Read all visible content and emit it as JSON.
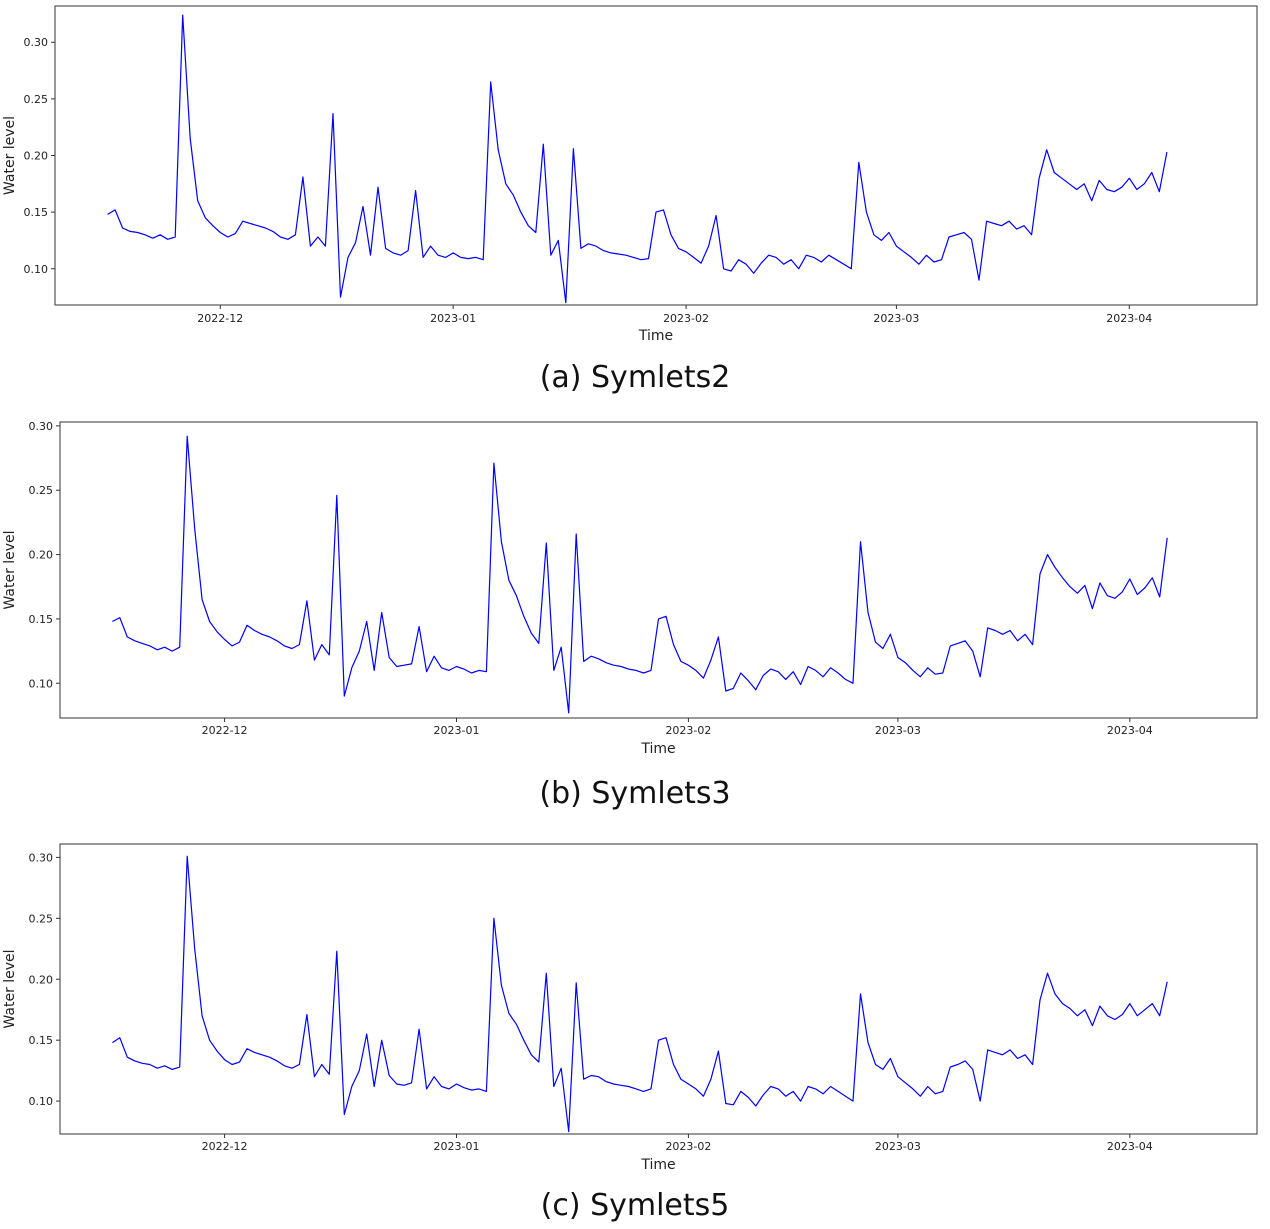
{
  "chart_data": [
    {
      "type": "line",
      "caption": "(a) Symlets2",
      "xlabel": "Time",
      "ylabel": "Water level",
      "ylim": [
        0.068,
        0.332
      ],
      "yticks": [
        "0.10",
        "0.15",
        "0.20",
        "0.25",
        "0.30"
      ],
      "ytick_values": [
        0.1,
        0.15,
        0.2,
        0.25,
        0.3
      ],
      "xticks": [
        "2022-12",
        "2023-01",
        "2023-02",
        "2023-03",
        "2023-04"
      ],
      "xtick_days": [
        15,
        46,
        77,
        105,
        136
      ],
      "xlim_days": [
        -7,
        153
      ],
      "color": "#0000ff",
      "series": [
        {
          "name": "Symlets2",
          "x_days": [
            0,
            1,
            2,
            3,
            4,
            5,
            6,
            7,
            8,
            9,
            10,
            11,
            12,
            13,
            14,
            15,
            16,
            17,
            18,
            19,
            20,
            21,
            22,
            23,
            24,
            25,
            26,
            27,
            28,
            29,
            30,
            31,
            32,
            33,
            34,
            35,
            36,
            37,
            38,
            39,
            40,
            41,
            42,
            43,
            44,
            45,
            46,
            47,
            48,
            49,
            50,
            51,
            52,
            53,
            54,
            55,
            56,
            57,
            58,
            59,
            60,
            61,
            62,
            63,
            64,
            65,
            66,
            67,
            68,
            69,
            70,
            71,
            72,
            73,
            74,
            75,
            76,
            77,
            78,
            79,
            80,
            81,
            82,
            83,
            84,
            85,
            86,
            87,
            88,
            89,
            90,
            91,
            92,
            93,
            94,
            95,
            96,
            97,
            98,
            99,
            100,
            101,
            102,
            103,
            104,
            105,
            106,
            107,
            108,
            109,
            110,
            111,
            112,
            113,
            114,
            115,
            116,
            117,
            118,
            119,
            120,
            121,
            122,
            123,
            124,
            125,
            126,
            127,
            128,
            129,
            130,
            131,
            132,
            133,
            134,
            135,
            136,
            137,
            138,
            139,
            140,
            141
          ],
          "values": [
            0.148,
            0.152,
            0.136,
            0.133,
            0.132,
            0.13,
            0.127,
            0.13,
            0.126,
            0.128,
            0.324,
            0.215,
            0.16,
            0.145,
            0.138,
            0.132,
            0.128,
            0.131,
            0.142,
            0.14,
            0.138,
            0.136,
            0.133,
            0.128,
            0.126,
            0.13,
            0.181,
            0.12,
            0.128,
            0.12,
            0.237,
            0.075,
            0.11,
            0.123,
            0.155,
            0.112,
            0.172,
            0.118,
            0.114,
            0.112,
            0.116,
            0.169,
            0.11,
            0.12,
            0.112,
            0.11,
            0.114,
            0.11,
            0.109,
            0.11,
            0.108,
            0.265,
            0.205,
            0.175,
            0.165,
            0.15,
            0.138,
            0.132,
            0.21,
            0.112,
            0.125,
            0.07,
            0.206,
            0.118,
            0.122,
            0.12,
            0.116,
            0.114,
            0.113,
            0.112,
            0.11,
            0.108,
            0.109,
            0.15,
            0.152,
            0.13,
            0.118,
            0.115,
            0.11,
            0.105,
            0.12,
            0.147,
            0.1,
            0.098,
            0.108,
            0.104,
            0.096,
            0.105,
            0.112,
            0.11,
            0.104,
            0.108,
            0.1,
            0.112,
            0.11,
            0.106,
            0.112,
            0.108,
            0.104,
            0.1,
            0.194,
            0.15,
            0.13,
            0.125,
            0.132,
            0.12,
            0.115,
            0.11,
            0.104,
            0.112,
            0.106,
            0.108,
            0.128,
            0.13,
            0.132,
            0.126,
            0.09,
            0.142,
            0.14,
            0.138,
            0.142,
            0.135,
            0.138,
            0.13,
            0.18,
            0.205,
            0.185,
            0.18,
            0.175,
            0.17,
            0.175,
            0.16,
            0.178,
            0.17,
            0.168,
            0.172,
            0.18,
            0.17,
            0.175,
            0.185,
            0.168,
            0.203
          ]
        }
      ]
    },
    {
      "type": "line",
      "caption": "(b) Symlets3",
      "xlabel": "Time",
      "ylabel": "Water level",
      "ylim": [
        0.073,
        0.303
      ],
      "yticks": [
        "0.10",
        "0.15",
        "0.20",
        "0.25",
        "0.30"
      ],
      "ytick_values": [
        0.1,
        0.15,
        0.2,
        0.25,
        0.3
      ],
      "xticks": [
        "2022-12",
        "2023-01",
        "2023-02",
        "2023-03",
        "2023-04"
      ],
      "xtick_days": [
        15,
        46,
        77,
        105,
        136
      ],
      "xlim_days": [
        -7,
        153
      ],
      "color": "#0000ff",
      "series": [
        {
          "name": "Symlets3",
          "x_days": [
            0,
            1,
            2,
            3,
            4,
            5,
            6,
            7,
            8,
            9,
            10,
            11,
            12,
            13,
            14,
            15,
            16,
            17,
            18,
            19,
            20,
            21,
            22,
            23,
            24,
            25,
            26,
            27,
            28,
            29,
            30,
            31,
            32,
            33,
            34,
            35,
            36,
            37,
            38,
            39,
            40,
            41,
            42,
            43,
            44,
            45,
            46,
            47,
            48,
            49,
            50,
            51,
            52,
            53,
            54,
            55,
            56,
            57,
            58,
            59,
            60,
            61,
            62,
            63,
            64,
            65,
            66,
            67,
            68,
            69,
            70,
            71,
            72,
            73,
            74,
            75,
            76,
            77,
            78,
            79,
            80,
            81,
            82,
            83,
            84,
            85,
            86,
            87,
            88,
            89,
            90,
            91,
            92,
            93,
            94,
            95,
            96,
            97,
            98,
            99,
            100,
            101,
            102,
            103,
            104,
            105,
            106,
            107,
            108,
            109,
            110,
            111,
            112,
            113,
            114,
            115,
            116,
            117,
            118,
            119,
            120,
            121,
            122,
            123,
            124,
            125,
            126,
            127,
            128,
            129,
            130,
            131,
            132,
            133,
            134,
            135,
            136,
            137,
            138,
            139,
            140,
            141
          ],
          "values": [
            0.148,
            0.151,
            0.136,
            0.133,
            0.131,
            0.129,
            0.126,
            0.128,
            0.125,
            0.128,
            0.292,
            0.22,
            0.165,
            0.148,
            0.14,
            0.134,
            0.129,
            0.132,
            0.145,
            0.141,
            0.138,
            0.136,
            0.133,
            0.129,
            0.127,
            0.13,
            0.164,
            0.118,
            0.13,
            0.122,
            0.246,
            0.09,
            0.112,
            0.125,
            0.148,
            0.11,
            0.155,
            0.12,
            0.113,
            0.114,
            0.115,
            0.144,
            0.109,
            0.121,
            0.112,
            0.11,
            0.113,
            0.111,
            0.108,
            0.11,
            0.109,
            0.271,
            0.21,
            0.18,
            0.168,
            0.152,
            0.139,
            0.131,
            0.209,
            0.11,
            0.128,
            0.077,
            0.216,
            0.117,
            0.121,
            0.119,
            0.116,
            0.114,
            0.113,
            0.111,
            0.11,
            0.108,
            0.11,
            0.15,
            0.152,
            0.13,
            0.117,
            0.114,
            0.11,
            0.104,
            0.118,
            0.136,
            0.094,
            0.096,
            0.108,
            0.102,
            0.095,
            0.106,
            0.111,
            0.109,
            0.103,
            0.109,
            0.099,
            0.113,
            0.11,
            0.105,
            0.112,
            0.108,
            0.103,
            0.1,
            0.21,
            0.155,
            0.132,
            0.127,
            0.138,
            0.12,
            0.116,
            0.11,
            0.105,
            0.112,
            0.107,
            0.108,
            0.129,
            0.131,
            0.133,
            0.125,
            0.105,
            0.143,
            0.141,
            0.138,
            0.141,
            0.133,
            0.138,
            0.13,
            0.185,
            0.2,
            0.19,
            0.182,
            0.175,
            0.17,
            0.176,
            0.158,
            0.178,
            0.168,
            0.166,
            0.171,
            0.181,
            0.169,
            0.174,
            0.182,
            0.167,
            0.213
          ]
        }
      ]
    },
    {
      "type": "line",
      "caption": "(c) Symlets5",
      "xlabel": "Time",
      "ylabel": "Water level",
      "ylim": [
        0.073,
        0.311
      ],
      "yticks": [
        "0.10",
        "0.15",
        "0.20",
        "0.25",
        "0.30"
      ],
      "ytick_values": [
        0.1,
        0.15,
        0.2,
        0.25,
        0.3
      ],
      "xticks": [
        "2022-12",
        "2023-01",
        "2023-02",
        "2023-03",
        "2023-04"
      ],
      "xtick_days": [
        15,
        46,
        77,
        105,
        136
      ],
      "xlim_days": [
        -7,
        153
      ],
      "color": "#0000ff",
      "series": [
        {
          "name": "Symlets5",
          "x_days": [
            0,
            1,
            2,
            3,
            4,
            5,
            6,
            7,
            8,
            9,
            10,
            11,
            12,
            13,
            14,
            15,
            16,
            17,
            18,
            19,
            20,
            21,
            22,
            23,
            24,
            25,
            26,
            27,
            28,
            29,
            30,
            31,
            32,
            33,
            34,
            35,
            36,
            37,
            38,
            39,
            40,
            41,
            42,
            43,
            44,
            45,
            46,
            47,
            48,
            49,
            50,
            51,
            52,
            53,
            54,
            55,
            56,
            57,
            58,
            59,
            60,
            61,
            62,
            63,
            64,
            65,
            66,
            67,
            68,
            69,
            70,
            71,
            72,
            73,
            74,
            75,
            76,
            77,
            78,
            79,
            80,
            81,
            82,
            83,
            84,
            85,
            86,
            87,
            88,
            89,
            90,
            91,
            92,
            93,
            94,
            95,
            96,
            97,
            98,
            99,
            100,
            101,
            102,
            103,
            104,
            105,
            106,
            107,
            108,
            109,
            110,
            111,
            112,
            113,
            114,
            115,
            116,
            117,
            118,
            119,
            120,
            121,
            122,
            123,
            124,
            125,
            126,
            127,
            128,
            129,
            130,
            131,
            132,
            133,
            134,
            135,
            136,
            137,
            138,
            139,
            140,
            141
          ],
          "values": [
            0.148,
            0.152,
            0.136,
            0.133,
            0.131,
            0.13,
            0.127,
            0.129,
            0.126,
            0.128,
            0.301,
            0.225,
            0.17,
            0.15,
            0.141,
            0.134,
            0.13,
            0.132,
            0.143,
            0.14,
            0.138,
            0.136,
            0.133,
            0.129,
            0.127,
            0.13,
            0.171,
            0.12,
            0.13,
            0.122,
            0.223,
            0.089,
            0.112,
            0.125,
            0.155,
            0.112,
            0.15,
            0.121,
            0.114,
            0.113,
            0.115,
            0.159,
            0.11,
            0.12,
            0.112,
            0.11,
            0.114,
            0.111,
            0.109,
            0.11,
            0.108,
            0.25,
            0.195,
            0.172,
            0.163,
            0.15,
            0.138,
            0.132,
            0.205,
            0.112,
            0.127,
            0.075,
            0.197,
            0.118,
            0.121,
            0.12,
            0.116,
            0.114,
            0.113,
            0.112,
            0.11,
            0.108,
            0.11,
            0.15,
            0.152,
            0.13,
            0.118,
            0.114,
            0.11,
            0.104,
            0.118,
            0.141,
            0.098,
            0.097,
            0.108,
            0.103,
            0.096,
            0.105,
            0.112,
            0.11,
            0.104,
            0.108,
            0.1,
            0.112,
            0.11,
            0.106,
            0.112,
            0.108,
            0.104,
            0.1,
            0.188,
            0.148,
            0.13,
            0.126,
            0.135,
            0.12,
            0.115,
            0.11,
            0.104,
            0.112,
            0.106,
            0.108,
            0.128,
            0.13,
            0.133,
            0.126,
            0.1,
            0.142,
            0.14,
            0.138,
            0.142,
            0.135,
            0.138,
            0.13,
            0.183,
            0.205,
            0.188,
            0.18,
            0.176,
            0.17,
            0.175,
            0.162,
            0.178,
            0.17,
            0.167,
            0.171,
            0.18,
            0.17,
            0.175,
            0.18,
            0.17,
            0.198
          ]
        }
      ]
    }
  ]
}
